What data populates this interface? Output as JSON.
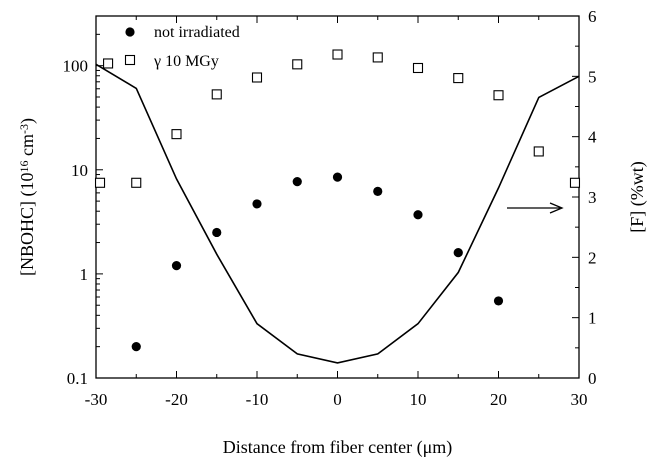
{
  "chart_data": {
    "type": "scatter",
    "xlabel": "Distance from fiber center (μm)",
    "ylabel_left": "[NBOHC] (10",
    "ylabel_left_sup": "16",
    "ylabel_left_mid": " cm",
    "ylabel_left_sup2": "-3",
    "ylabel_left_end": ")",
    "ylabel_right": "[F] (%wt)",
    "xlim": [
      -30,
      30
    ],
    "xticks": [
      -30,
      -20,
      -10,
      0,
      10,
      20,
      30
    ],
    "ylim_left": [
      0.1,
      300
    ],
    "yscale_left": "log",
    "yticks_left": [
      0.1,
      1,
      10,
      100
    ],
    "yticklabels_left": [
      "0.1",
      "1",
      "10",
      "100"
    ],
    "ylim_right": [
      0,
      6
    ],
    "yticks_right": [
      0,
      1,
      2,
      3,
      4,
      5,
      6
    ],
    "legend_position": "top-left",
    "series": [
      {
        "name": "not irradiated",
        "axis": "left",
        "marker": "filled-circle",
        "x": [
          -25,
          -20,
          -15,
          -10,
          -5,
          0,
          5,
          10,
          15,
          20
        ],
        "y": [
          0.2,
          1.2,
          2.5,
          4.7,
          7.7,
          8.5,
          6.2,
          3.7,
          1.6,
          0.55
        ]
      },
      {
        "name": "γ 10 MGy",
        "axis": "left",
        "marker": "open-square",
        "x": [
          -29.5,
          -28.5,
          -25,
          -20,
          -15,
          -10,
          -5,
          0,
          5,
          10,
          15,
          20,
          25,
          29.5
        ],
        "y": [
          7.5,
          105,
          7.5,
          22,
          53,
          77,
          103,
          128,
          120,
          95,
          76,
          52,
          15,
          7.5
        ]
      },
      {
        "name": "[F]",
        "axis": "right",
        "marker": "line",
        "x": [
          -30,
          -25,
          -20,
          -15,
          -10,
          -5,
          0,
          5,
          10,
          15,
          20,
          25,
          30
        ],
        "y": [
          5.2,
          4.8,
          3.3,
          2.05,
          0.9,
          0.4,
          0.25,
          0.4,
          0.9,
          1.75,
          3.15,
          4.65,
          5.0
        ]
      }
    ],
    "annotation": "arrow pointing to right axis"
  }
}
